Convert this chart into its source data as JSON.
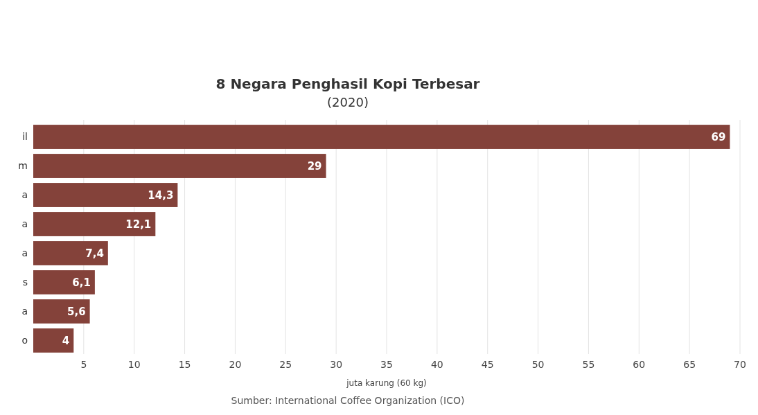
{
  "chart_data": {
    "type": "bar",
    "orientation": "horizontal",
    "title": "8 Negara Penghasil Kopi Terbesar",
    "subtitle": "(2020)",
    "xlabel": "juta karung (60 kg)",
    "categories": [
      "il",
      "m",
      "a",
      "a",
      "a",
      "s",
      "a",
      "o"
    ],
    "values": [
      69,
      29,
      14.3,
      12.1,
      7.4,
      6.1,
      5.6,
      4
    ],
    "value_labels": [
      "69",
      "29",
      "14,3",
      "12,1",
      "7,4",
      "6,1",
      "5,6",
      "4"
    ],
    "color": "#84423a",
    "xlim": [
      0,
      70
    ],
    "xticks": [
      5,
      10,
      15,
      20,
      25,
      30,
      35,
      40,
      45,
      50,
      55,
      60,
      65,
      70
    ],
    "grid": "x",
    "annotations": [
      "Sumber: International Coffee Organization (ICO)"
    ]
  }
}
